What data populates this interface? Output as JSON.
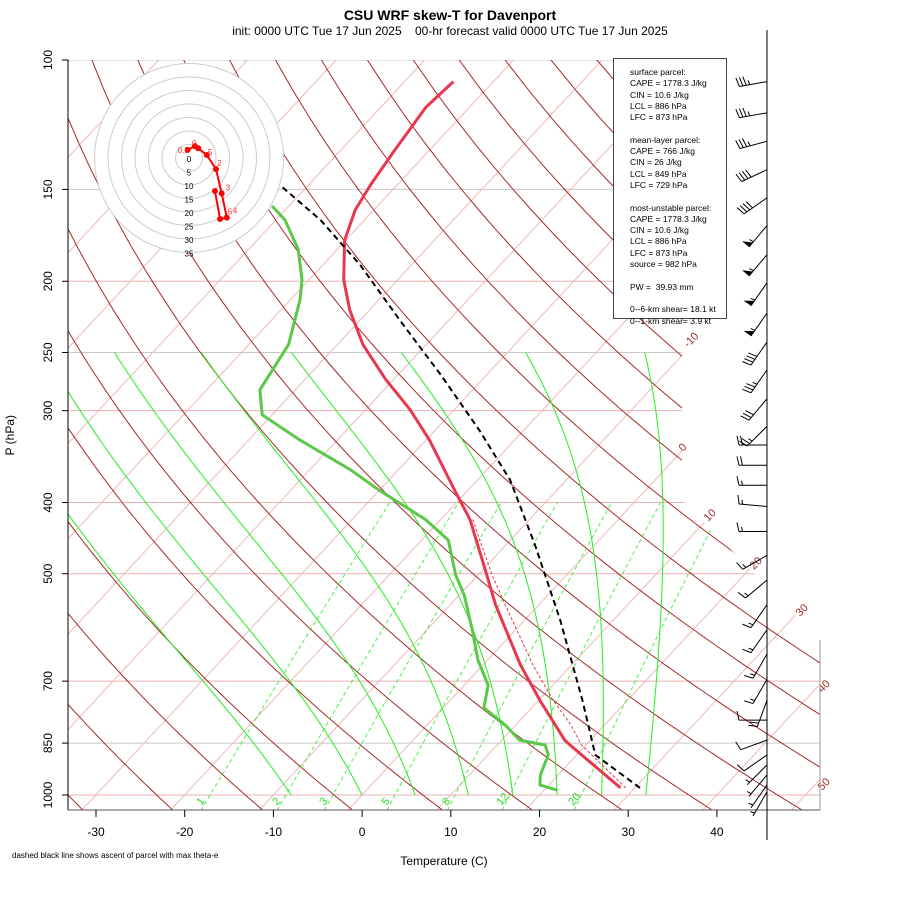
{
  "header": {
    "title": "CSU WRF skew-T for Davenport",
    "subtitle": "init: 0000 UTC Tue 17 Jun 2025    00-hr forecast valid 0000 UTC Tue 17 Jun 2025"
  },
  "footnote": "dashed black line shows ascent of parcel with max theta-e",
  "info_box": {
    "lines": [
      "surface parcel:",
      "CAPE = 1778.3 J/kg",
      "CIN = 10.6 J/kg",
      "LCL = 886 hPa",
      "LFC = 873 hPa",
      "",
      "mean-layer parcel:",
      "CAPE = 766 J/kg",
      "CIN = 26 J/kg",
      "LCL = 849 hPa",
      "LFC = 729 hPa",
      "",
      "most-unstable parcel:",
      "CAPE = 1778.3 J/kg",
      "CIN = 10.6 J/kg",
      "LCL = 886 hPa",
      "LFC = 873 hPa",
      "source = 982 hPa",
      "",
      "PW =  39.93 mm",
      "",
      "0--6-km shear= 18.1 kt",
      "0--1-km shear= 3.9 kt"
    ]
  },
  "colors": {
    "temperature": "#e8384f",
    "dewpoint": "#5cc84a",
    "parcel": "#000000",
    "isotherm": "#f0b8b8",
    "dry_adiabat": "#a52a2a",
    "moist_adiabat": "#22ee22",
    "mixing_ratio": "#22ee22",
    "hodograph": "#ff0000"
  },
  "chart_data": {
    "type": "line",
    "title": "CSU WRF skew-T for Davenport",
    "xlabel": "Temperature (C)",
    "ylabel": "P (hPa)",
    "xlim": [
      -33,
      45
    ],
    "ylim": [
      1000,
      100
    ],
    "x_ticks": [
      "-30",
      "-20",
      "-10",
      "0",
      "10",
      "20",
      "30",
      "40"
    ],
    "x_tick_values": [
      -30,
      -20,
      -10,
      0,
      10,
      20,
      30,
      40
    ],
    "y_ticks": [
      "100",
      "150",
      "200",
      "250",
      "300",
      "400",
      "500",
      "700",
      "850",
      "1000"
    ],
    "y_tick_values": [
      100,
      150,
      200,
      250,
      300,
      400,
      500,
      700,
      850,
      1000
    ],
    "isotherm_labels": [
      "-10",
      "0",
      "10",
      "20",
      "30",
      "40",
      "50"
    ],
    "mixing_ratio_labels": [
      "1",
      "2",
      "3",
      "5",
      "8",
      "12",
      "20"
    ],
    "series": [
      {
        "name": "temperature",
        "pressure": [
          978,
          855,
          842,
          743,
          665,
          551,
          502,
          422,
          385,
          329,
          299,
          272,
          244,
          219,
          199,
          176,
          160,
          148,
          133,
          116,
          107
        ],
        "temp_c": [
          28.4,
          18.2,
          17.1,
          10.1,
          4.2,
          -4.9,
          -9.0,
          -16.7,
          -21.5,
          -29.6,
          -35.0,
          -40.9,
          -47.1,
          -52.2,
          -56.1,
          -60.1,
          -62.1,
          -63.0,
          -63.9,
          -64.9,
          -64.5
        ]
      },
      {
        "name": "dewpoint",
        "pressure": [
          985,
          969,
          939,
          882,
          855,
          842,
          803,
          761,
          709,
          655,
          596,
          535,
          502,
          450,
          422,
          385,
          361,
          329,
          304,
          281,
          244,
          212,
          199,
          181,
          165,
          158
        ],
        "temp_c": [
          21.5,
          19.0,
          18.0,
          16.8,
          15.4,
          12.0,
          8.8,
          4.6,
          2.7,
          -1.1,
          -4.9,
          -9.4,
          -12.5,
          -17.0,
          -21.7,
          -30.0,
          -35.4,
          -44.2,
          -51.1,
          -54.0,
          -55.5,
          -58.9,
          -60.8,
          -64.4,
          -69.0,
          -71.9
        ]
      },
      {
        "name": "virtual-temperature",
        "pressure": [
          978,
          855,
          800,
          743,
          665,
          551,
          502,
          422
        ],
        "temp_c": [
          29.0,
          19.5,
          16.0,
          11.6,
          5.6,
          -3.8,
          -8.4,
          -16.4
        ]
      },
      {
        "name": "parcel-ascent",
        "pressure": [
          978,
          882,
          743,
          578,
          457,
          373,
          319,
          268,
          226,
          190,
          165,
          148
        ],
        "temp_c": [
          30.6,
          22.1,
          14.9,
          4.0,
          -6.7,
          -16.3,
          -25.0,
          -35.2,
          -45.5,
          -55.8,
          -65.0,
          -73.2
        ]
      }
    ],
    "hodograph": {
      "ring_labels": [
        "0",
        "5",
        "10",
        "15",
        "20",
        "25",
        "30",
        "35"
      ],
      "ring_values": [
        0,
        5,
        10,
        15,
        20,
        25,
        30,
        35
      ],
      "u_kt": [
        -0.5,
        2.2,
        3.4,
        6.6,
        10.0,
        12.1,
        14.0,
        11.5,
        9.6
      ],
      "v_kt": [
        3.0,
        4.4,
        3.6,
        1.1,
        -4.1,
        -13.1,
        -22.1,
        -22.6,
        -12.2
      ],
      "height_labels": [
        "0.5",
        "0",
        "5",
        "2",
        "3",
        "5",
        "4"
      ]
    },
    "wind_barbs": {
      "pressure": [
        107,
        118,
        129,
        141,
        154,
        168,
        184,
        201,
        221,
        242,
        264,
        289,
        315,
        334,
        356,
        379,
        405,
        438,
        472,
        510,
        551,
        596,
        643,
        696,
        743,
        791,
        842,
        882,
        910,
        939,
        969,
        990
      ],
      "speed_kt": [
        35,
        35,
        35,
        40,
        40,
        55,
        55,
        55,
        55,
        40,
        35,
        30,
        25,
        20,
        20,
        15,
        15,
        15,
        15,
        15,
        15,
        15,
        15,
        15,
        20,
        10,
        10,
        10,
        5,
        5,
        5,
        5
      ],
      "direction_deg": [
        260,
        260,
        255,
        245,
        235,
        220,
        220,
        215,
        215,
        215,
        215,
        220,
        225,
        270,
        270,
        270,
        275,
        270,
        240,
        230,
        215,
        215,
        210,
        210,
        200,
        270,
        250,
        235,
        225,
        220,
        215,
        210
      ]
    }
  }
}
